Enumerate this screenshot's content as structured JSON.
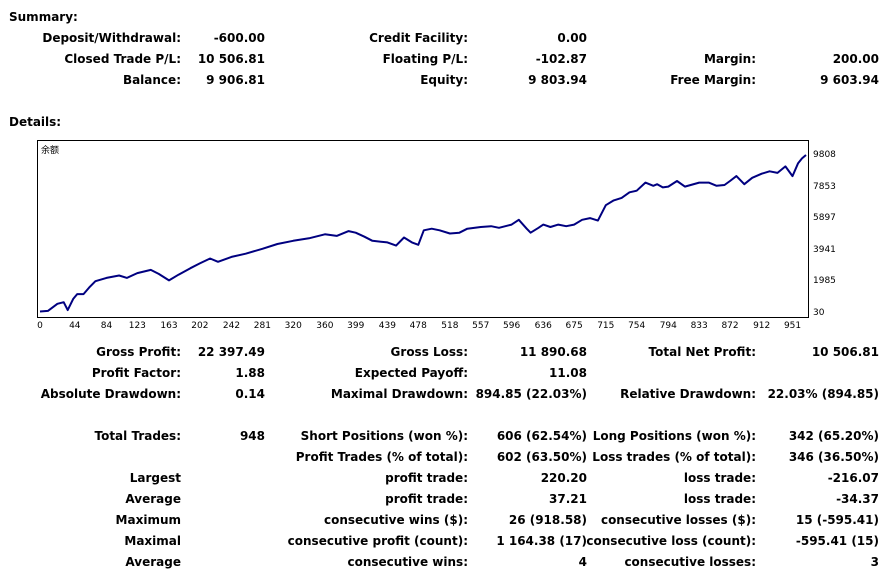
{
  "summary": {
    "title": "Summary:",
    "deposit_label": "Deposit/Withdrawal:",
    "deposit_value": "-600.00",
    "credit_label": "Credit Facility:",
    "credit_value": "0.00",
    "closed_pl_label": "Closed Trade P/L:",
    "closed_pl_value": "10 506.81",
    "floating_pl_label": "Floating P/L:",
    "floating_pl_value": "-102.87",
    "margin_label": "Margin:",
    "margin_value": "200.00",
    "balance_label": "Balance:",
    "balance_value": "9 906.81",
    "equity_label": "Equity:",
    "equity_value": "9 803.94",
    "free_margin_label": "Free Margin:",
    "free_margin_value": "9 603.94"
  },
  "details": {
    "title": "Details:"
  },
  "chart_data": {
    "type": "line",
    "title": "余额",
    "x_ticks": [
      "0",
      "44",
      "84",
      "123",
      "163",
      "202",
      "242",
      "281",
      "320",
      "360",
      "399",
      "439",
      "478",
      "518",
      "557",
      "596",
      "636",
      "675",
      "715",
      "754",
      "794",
      "833",
      "872",
      "912",
      "951"
    ],
    "y_ticks": [
      "9808",
      "7853",
      "5897",
      "3941",
      "1985",
      "30"
    ],
    "ylim": [
      30,
      9808
    ],
    "xlim": [
      0,
      968
    ],
    "grid": false,
    "series": [
      {
        "color": "#000080",
        "x": [
          0,
          10,
          22,
          30,
          35,
          42,
          47,
          55,
          62,
          70,
          84,
          100,
          110,
          123,
          140,
          150,
          163,
          175,
          190,
          202,
          215,
          225,
          242,
          260,
          281,
          300,
          320,
          340,
          360,
          375,
          390,
          399,
          410,
          420,
          439,
          450,
          460,
          470,
          478,
          485,
          495,
          505,
          518,
          530,
          540,
          557,
          570,
          580,
          596,
          605,
          615,
          620,
          630,
          636,
          645,
          655,
          665,
          675,
          685,
          695,
          705,
          715,
          725,
          735,
          745,
          754,
          765,
          775,
          780,
          787,
          794,
          805,
          815,
          833,
          845,
          855,
          865,
          872,
          880,
          890,
          900,
          912,
          922,
          932,
          942,
          951,
          958,
          963,
          968
        ],
        "y": [
          120,
          160,
          600,
          700,
          210,
          900,
          1200,
          1200,
          1600,
          2000,
          2200,
          2350,
          2200,
          2500,
          2700,
          2450,
          2050,
          2400,
          2800,
          3100,
          3400,
          3200,
          3500,
          3700,
          4000,
          4300,
          4500,
          4650,
          4900,
          4800,
          5100,
          5000,
          4750,
          4500,
          4400,
          4200,
          4700,
          4400,
          4250,
          5150,
          5250,
          5150,
          4950,
          5000,
          5250,
          5350,
          5400,
          5300,
          5500,
          5800,
          5250,
          5000,
          5300,
          5500,
          5350,
          5500,
          5400,
          5500,
          5800,
          5900,
          5750,
          6700,
          7000,
          7150,
          7500,
          7600,
          8100,
          7900,
          8000,
          7800,
          7850,
          8200,
          7850,
          8100,
          8100,
          7900,
          7950,
          8200,
          8500,
          8000,
          8400,
          8650,
          8800,
          8700,
          9100,
          8500,
          9300,
          9600,
          9808
        ]
      }
    ]
  },
  "stats": {
    "gross_profit_label": "Gross Profit:",
    "gross_profit_value": "22 397.49",
    "gross_loss_label": "Gross Loss:",
    "gross_loss_value": "11 890.68",
    "total_net_label": "Total Net Profit:",
    "total_net_value": "10 506.81",
    "profit_factor_label": "Profit Factor:",
    "profit_factor_value": "1.88",
    "expected_payoff_label": "Expected Payoff:",
    "expected_payoff_value": "11.08",
    "abs_dd_label": "Absolute Drawdown:",
    "abs_dd_value": "0.14",
    "max_dd_label": "Maximal Drawdown:",
    "max_dd_value": "894.85 (22.03%)",
    "rel_dd_label": "Relative Drawdown:",
    "rel_dd_value": "22.03% (894.85)",
    "total_trades_label": "Total Trades:",
    "total_trades_value": "948",
    "short_label": "Short Positions (won %):",
    "short_value": "606 (62.54%)",
    "long_label": "Long Positions (won %):",
    "long_value": "342 (65.20%)",
    "profit_trades_label": "Profit Trades (% of total):",
    "profit_trades_value": "602 (63.50%)",
    "loss_trades_label": "Loss trades (% of total):",
    "loss_trades_value": "346 (36.50%)",
    "largest_label": "Largest",
    "largest_profit_label": "profit trade:",
    "largest_profit_value": "220.20",
    "largest_loss_label": "loss trade:",
    "largest_loss_value": "-216.07",
    "average_label": "Average",
    "avg_profit_label": "profit trade:",
    "avg_profit_value": "37.21",
    "avg_loss_label": "loss trade:",
    "avg_loss_value": "-34.37",
    "maximum_label": "Maximum",
    "max_cons_wins_label": "consecutive wins ($):",
    "max_cons_wins_value": "26 (918.58)",
    "max_cons_losses_label": "consecutive losses ($):",
    "max_cons_losses_value": "15 (-595.41)",
    "maximal_label": "Maximal",
    "maximal_profit_label": "consecutive profit (count):",
    "maximal_profit_value": "1 164.38 (17)",
    "maximal_loss_label": "consecutive loss (count):",
    "maximal_loss_value": "-595.41 (15)",
    "average2_label": "Average",
    "avg_cons_wins_label": "consecutive wins:",
    "avg_cons_wins_value": "4",
    "avg_cons_losses_label": "consecutive losses:",
    "avg_cons_losses_value": "3"
  }
}
